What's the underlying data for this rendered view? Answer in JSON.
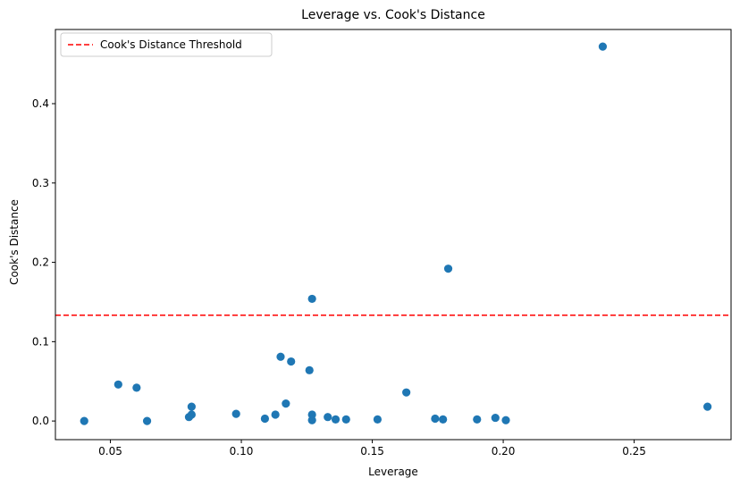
{
  "chart_data": {
    "type": "scatter",
    "title": "Leverage vs. Cook's Distance",
    "xlabel": "Leverage",
    "ylabel": "Cook's Distance",
    "xlim": [
      0.029,
      0.287
    ],
    "ylim": [
      -0.0235,
      0.4935
    ],
    "xticks": [
      0.05,
      0.1,
      0.15,
      0.2,
      0.25
    ],
    "xtick_labels": [
      "0.05",
      "0.10",
      "0.15",
      "0.20",
      "0.25"
    ],
    "yticks": [
      0.0,
      0.1,
      0.2,
      0.3,
      0.4
    ],
    "ytick_labels": [
      "0.0",
      "0.1",
      "0.2",
      "0.3",
      "0.4"
    ],
    "grid": false,
    "legend": {
      "position": "upper-left",
      "entries": [
        "Cook's Distance Threshold"
      ]
    },
    "series": [
      {
        "color": "#1f77b4",
        "points": [
          [
            0.04,
            0.0
          ],
          [
            0.053,
            0.046
          ],
          [
            0.06,
            0.042
          ],
          [
            0.064,
            0.0
          ],
          [
            0.08,
            0.005
          ],
          [
            0.081,
            0.008
          ],
          [
            0.081,
            0.018
          ],
          [
            0.098,
            0.009
          ],
          [
            0.109,
            0.003
          ],
          [
            0.113,
            0.008
          ],
          [
            0.115,
            0.081
          ],
          [
            0.117,
            0.022
          ],
          [
            0.119,
            0.075
          ],
          [
            0.126,
            0.064
          ],
          [
            0.127,
            0.154
          ],
          [
            0.127,
            0.008
          ],
          [
            0.127,
            0.001
          ],
          [
            0.133,
            0.005
          ],
          [
            0.136,
            0.002
          ],
          [
            0.14,
            0.002
          ],
          [
            0.152,
            0.002
          ],
          [
            0.163,
            0.036
          ],
          [
            0.174,
            0.003
          ],
          [
            0.177,
            0.002
          ],
          [
            0.179,
            0.192
          ],
          [
            0.19,
            0.002
          ],
          [
            0.197,
            0.004
          ],
          [
            0.201,
            0.001
          ],
          [
            0.238,
            0.472
          ],
          [
            0.278,
            0.018
          ]
        ]
      }
    ],
    "threshold": {
      "name": "Cook's Distance Threshold",
      "value": 0.1333,
      "color": "#ff0000",
      "style": "dashed"
    }
  }
}
